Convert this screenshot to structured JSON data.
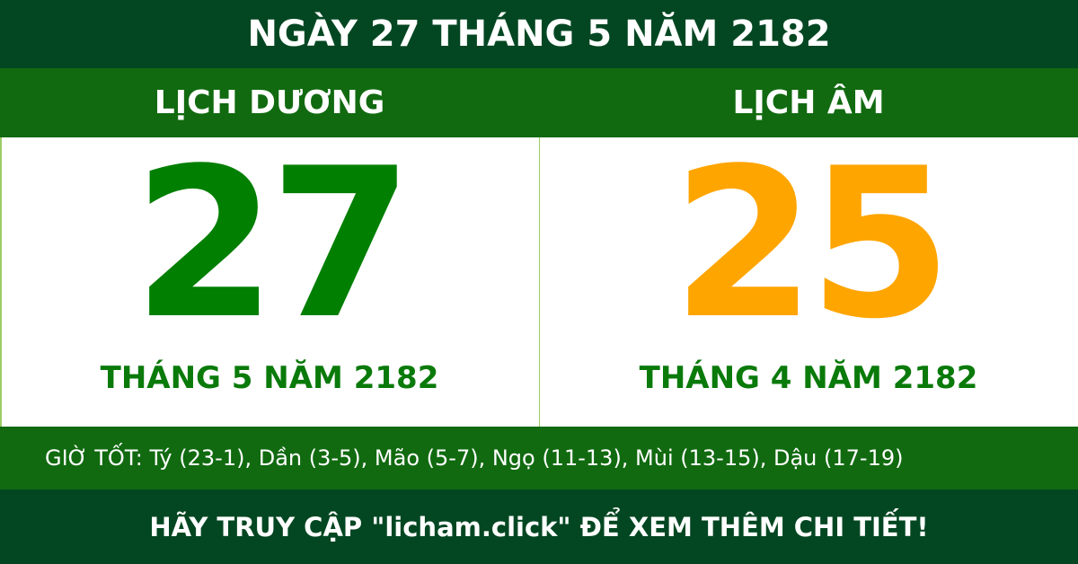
{
  "title": "NGÀY 27 THÁNG 5 NĂM 2182",
  "solar": {
    "heading": "LỊCH DƯƠNG",
    "day": "27",
    "month_year": "THÁNG 5 NĂM 2182"
  },
  "lunar": {
    "heading": "LỊCH ÂM",
    "day": "25",
    "month_year": "THÁNG 4 NĂM 2182"
  },
  "good_hours": "GIỜ TỐT: Tý (23-1), Dần (3-5), Mão (5-7), Ngọ (11-13), Mùi (13-15), Dậu (17-19)",
  "footer": "HÃY TRUY CẬP \"licham.click\" ĐỂ XEM THÊM CHI TIẾT!",
  "colors": {
    "dark_green": "#034722",
    "green": "#116a10",
    "solar_number": "#007f00",
    "lunar_number": "#ffa500"
  }
}
